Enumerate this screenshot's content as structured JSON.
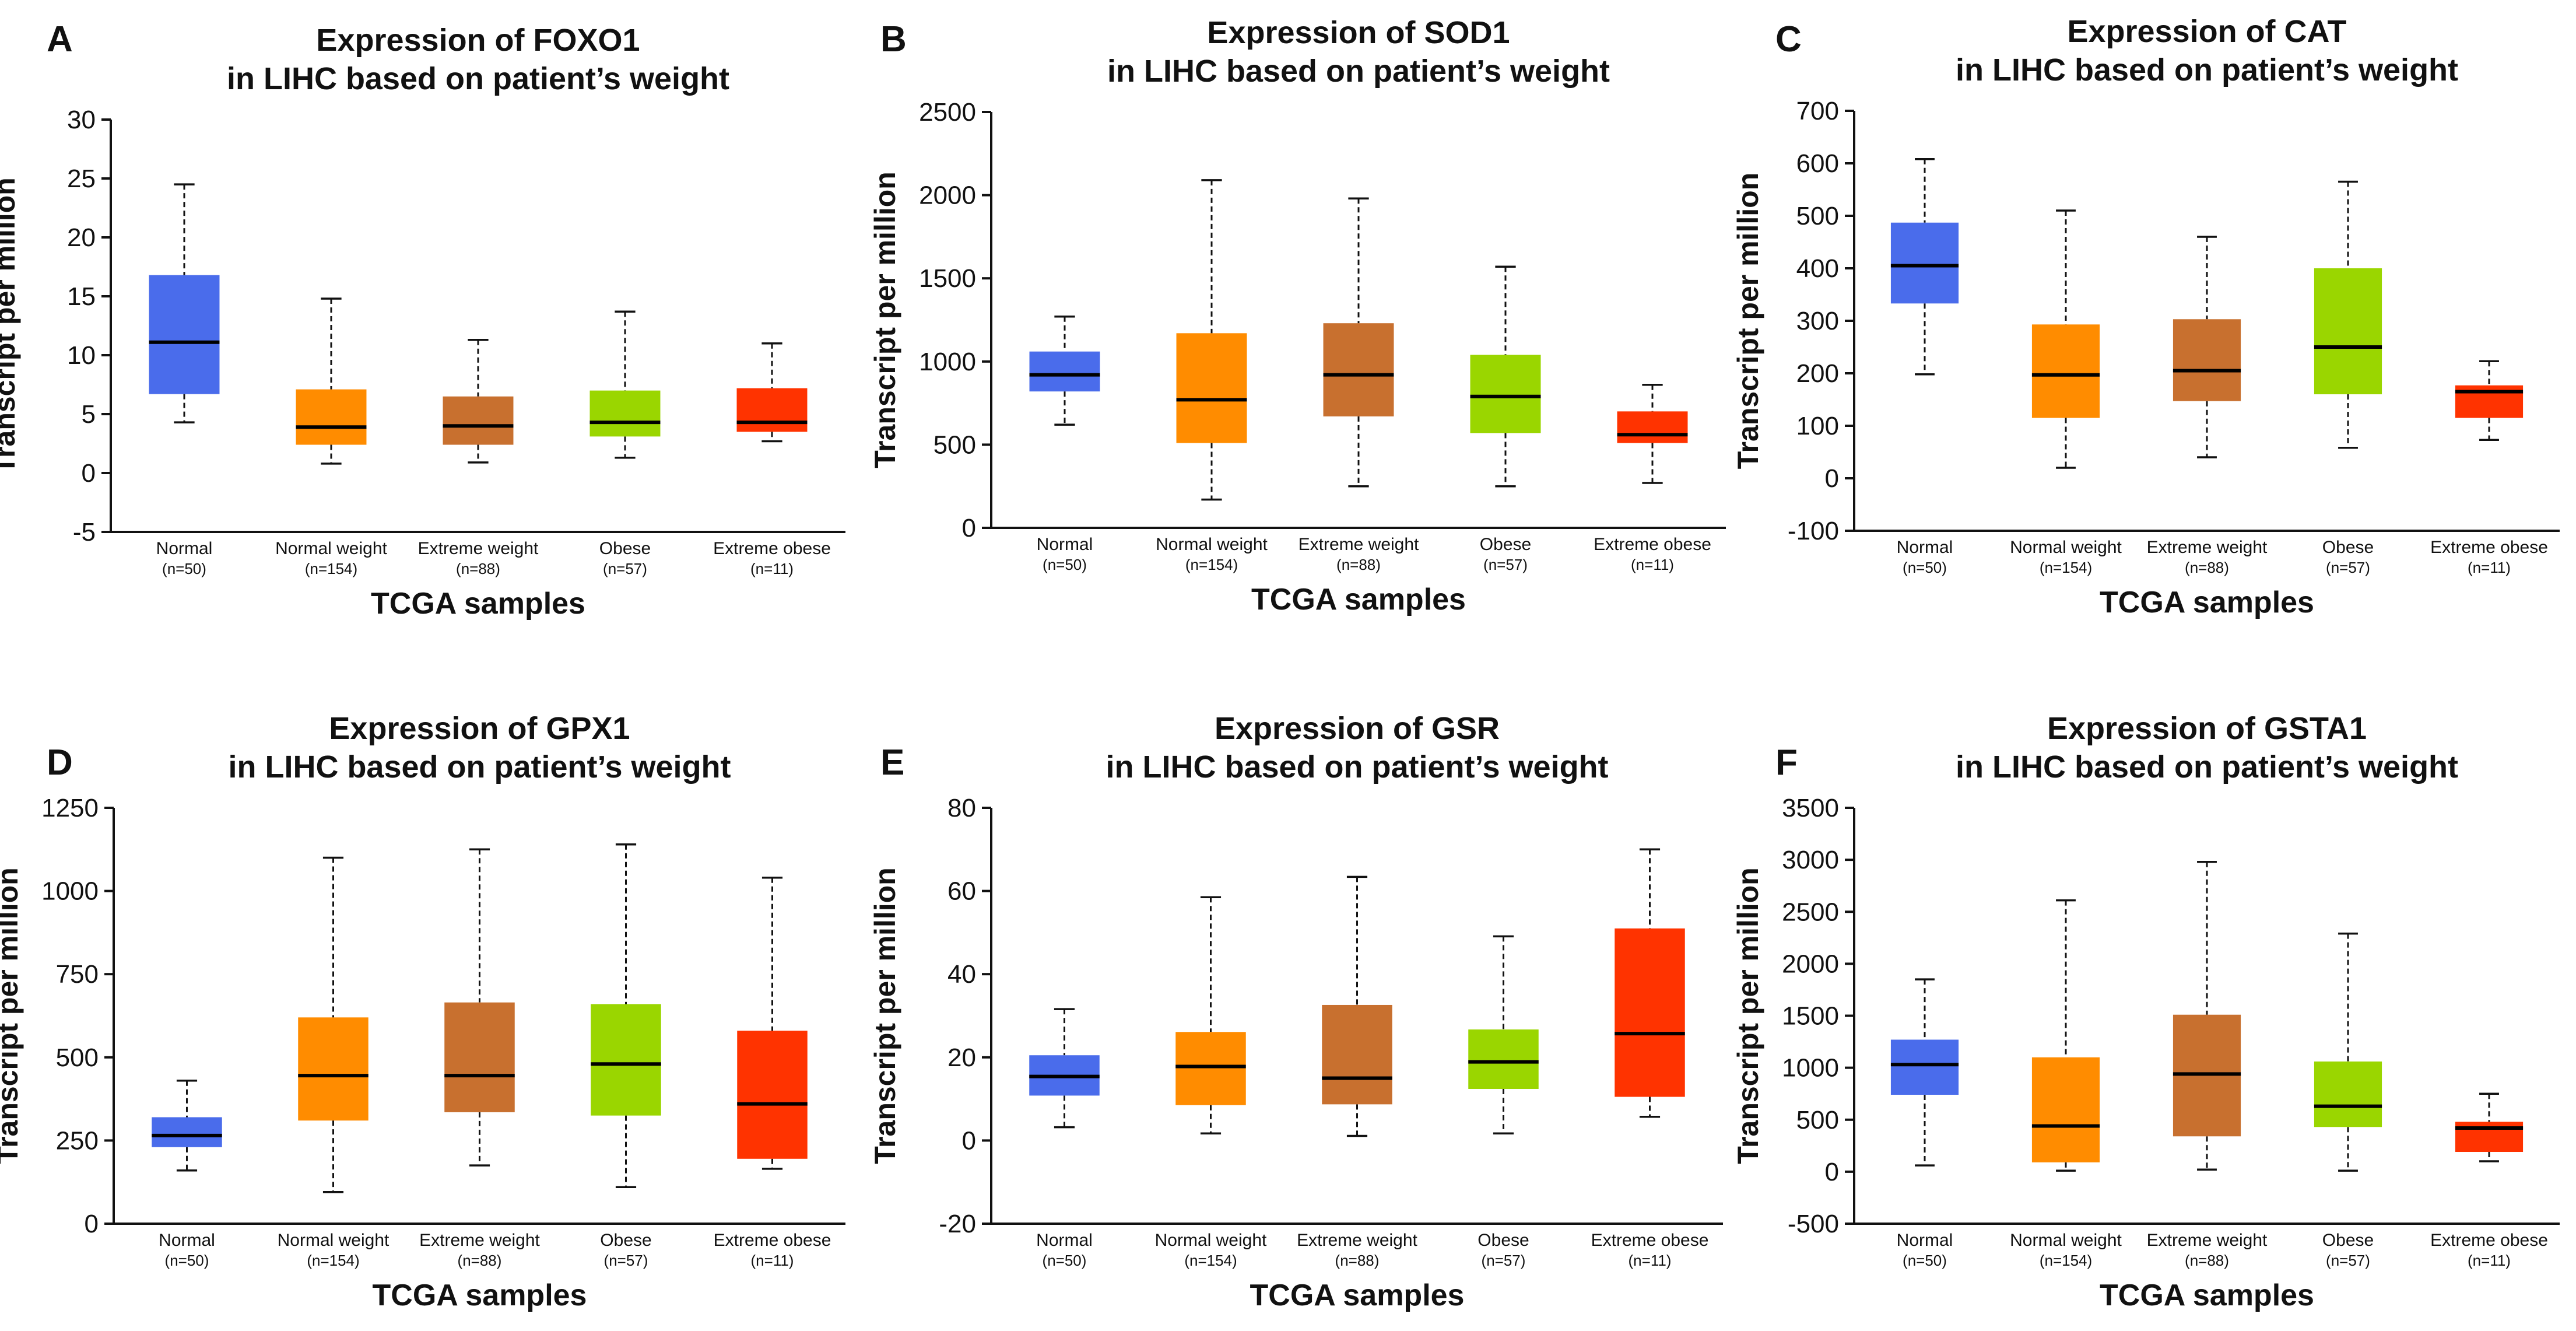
{
  "figure": {
    "x_axis_label": "TCGA samples",
    "y_axis_label": "Transcript per million"
  },
  "colors": {
    "Normal": "#4A6CEB",
    "Normal weight": "#FF8C00",
    "Extreme weight": "#C8702F",
    "Obese": "#9AD600",
    "Extreme obese": "#FF3300"
  },
  "chart_data": [
    {
      "panel": "A",
      "type": "box",
      "title": [
        "Expression of FOXO1",
        "in LIHC based on patient’s weight"
      ],
      "xlabel": "TCGA samples",
      "ylabel": "Transcript per million",
      "ylim": [
        -5,
        30
      ],
      "yticks": [
        -5,
        0,
        5,
        10,
        15,
        20,
        25,
        30
      ],
      "categories": [
        "Normal",
        "Normal weight",
        "Extreme weight",
        "Obese",
        "Extreme obese"
      ],
      "n_labels": [
        "(n=50)",
        "(n=154)",
        "(n=88)",
        "(n=57)",
        "(n=11)"
      ],
      "boxes": [
        {
          "min": 4.3,
          "q1": 6.7,
          "median": 11.1,
          "q3": 16.8,
          "max": 24.5
        },
        {
          "min": 0.8,
          "q1": 2.4,
          "median": 3.9,
          "q3": 7.1,
          "max": 14.8
        },
        {
          "min": 0.9,
          "q1": 2.4,
          "median": 4.0,
          "q3": 6.5,
          "max": 11.3
        },
        {
          "min": 1.3,
          "q1": 3.1,
          "median": 4.3,
          "q3": 7.0,
          "max": 13.7
        },
        {
          "min": 2.7,
          "q1": 3.5,
          "median": 4.3,
          "q3": 7.2,
          "max": 11.0
        }
      ]
    },
    {
      "panel": "B",
      "type": "box",
      "title": [
        "Expression of SOD1",
        "in LIHC based on patient’s weight"
      ],
      "xlabel": "TCGA samples",
      "ylabel": "Transcript per million",
      "ylim": [
        0,
        2500
      ],
      "yticks": [
        0,
        500,
        1000,
        1500,
        2000,
        2500
      ],
      "categories": [
        "Normal",
        "Normal weight",
        "Extreme weight",
        "Obese",
        "Extreme obese"
      ],
      "n_labels": [
        "(n=50)",
        "(n=154)",
        "(n=88)",
        "(n=57)",
        "(n=11)"
      ],
      "boxes": [
        {
          "min": 620,
          "q1": 820,
          "median": 920,
          "q3": 1060,
          "max": 1270
        },
        {
          "min": 170,
          "q1": 510,
          "median": 770,
          "q3": 1170,
          "max": 2090
        },
        {
          "min": 250,
          "q1": 670,
          "median": 920,
          "q3": 1230,
          "max": 1980
        },
        {
          "min": 250,
          "q1": 570,
          "median": 790,
          "q3": 1040,
          "max": 1570
        },
        {
          "min": 270,
          "q1": 510,
          "median": 560,
          "q3": 700,
          "max": 860
        }
      ]
    },
    {
      "panel": "C",
      "type": "box",
      "title": [
        "Expression of CAT",
        "in LIHC based on patient’s weight"
      ],
      "xlabel": "TCGA samples",
      "ylabel": "Transcript per million",
      "ylim": [
        -100,
        700
      ],
      "yticks": [
        -100,
        0,
        100,
        200,
        300,
        400,
        500,
        600,
        700
      ],
      "categories": [
        "Normal",
        "Normal weight",
        "Extreme weight",
        "Obese",
        "Extreme obese"
      ],
      "n_labels": [
        "(n=50)",
        "(n=154)",
        "(n=88)",
        "(n=57)",
        "(n=11)"
      ],
      "boxes": [
        {
          "min": 198,
          "q1": 333,
          "median": 405,
          "q3": 487,
          "max": 608
        },
        {
          "min": 20,
          "q1": 115,
          "median": 197,
          "q3": 293,
          "max": 510
        },
        {
          "min": 40,
          "q1": 147,
          "median": 205,
          "q3": 303,
          "max": 460
        },
        {
          "min": 58,
          "q1": 160,
          "median": 250,
          "q3": 400,
          "max": 565
        },
        {
          "min": 73,
          "q1": 115,
          "median": 165,
          "q3": 177,
          "max": 223
        }
      ]
    },
    {
      "panel": "D",
      "type": "box",
      "title": [
        "Expression of GPX1",
        "in LIHC based on patient’s weight"
      ],
      "xlabel": "TCGA samples",
      "ylabel": "Transcript per million",
      "ylim": [
        0,
        1250
      ],
      "yticks": [
        0,
        250,
        500,
        750,
        1000,
        1250
      ],
      "categories": [
        "Normal",
        "Normal weight",
        "Extreme weight",
        "Obese",
        "Extreme obese"
      ],
      "n_labels": [
        "(n=50)",
        "(n=154)",
        "(n=88)",
        "(n=57)",
        "(n=11)"
      ],
      "boxes": [
        {
          "min": 160,
          "q1": 230,
          "median": 265,
          "q3": 320,
          "max": 430
        },
        {
          "min": 95,
          "q1": 310,
          "median": 445,
          "q3": 620,
          "max": 1100
        },
        {
          "min": 175,
          "q1": 335,
          "median": 445,
          "q3": 665,
          "max": 1125
        },
        {
          "min": 110,
          "q1": 325,
          "median": 480,
          "q3": 660,
          "max": 1140
        },
        {
          "min": 165,
          "q1": 195,
          "median": 360,
          "q3": 580,
          "max": 1040
        }
      ]
    },
    {
      "panel": "E",
      "type": "box",
      "title": [
        "Expression of GSR",
        "in LIHC based on patient’s weight"
      ],
      "xlabel": "TCGA samples",
      "ylabel": "Transcript per million",
      "ylim": [
        -20,
        80
      ],
      "yticks": [
        -20,
        0,
        20,
        40,
        60,
        80
      ],
      "categories": [
        "Normal",
        "Normal weight",
        "Extreme weight",
        "Obese",
        "Extreme obese"
      ],
      "n_labels": [
        "(n=50)",
        "(n=154)",
        "(n=88)",
        "(n=57)",
        "(n=11)"
      ],
      "boxes": [
        {
          "min": 3.2,
          "q1": 10.8,
          "median": 15.4,
          "q3": 20.5,
          "max": 31.6
        },
        {
          "min": 1.7,
          "q1": 8.5,
          "median": 17.8,
          "q3": 26.1,
          "max": 58.5
        },
        {
          "min": 1.1,
          "q1": 8.7,
          "median": 15.0,
          "q3": 32.6,
          "max": 63.4
        },
        {
          "min": 1.7,
          "q1": 12.4,
          "median": 18.9,
          "q3": 26.7,
          "max": 49.1
        },
        {
          "min": 5.7,
          "q1": 10.5,
          "median": 25.7,
          "q3": 51.0,
          "max": 70.0
        }
      ]
    },
    {
      "panel": "F",
      "type": "box",
      "title": [
        "Expression of GSTA1",
        "in LIHC based on patient’s weight"
      ],
      "xlabel": "TCGA samples",
      "ylabel": "Transcript per million",
      "ylim": [
        -500,
        3500
      ],
      "yticks": [
        -500,
        0,
        500,
        1000,
        1500,
        2000,
        2500,
        3000,
        3500
      ],
      "categories": [
        "Normal",
        "Normal weight",
        "Extreme weight",
        "Obese",
        "Extreme obese"
      ],
      "n_labels": [
        "(n=50)",
        "(n=154)",
        "(n=88)",
        "(n=57)",
        "(n=11)"
      ],
      "boxes": [
        {
          "min": 60,
          "q1": 740,
          "median": 1030,
          "q3": 1270,
          "max": 1850
        },
        {
          "min": 10,
          "q1": 90,
          "median": 440,
          "q3": 1100,
          "max": 2610
        },
        {
          "min": 20,
          "q1": 340,
          "median": 940,
          "q3": 1510,
          "max": 2980
        },
        {
          "min": 10,
          "q1": 430,
          "median": 630,
          "q3": 1060,
          "max": 2290
        },
        {
          "min": 100,
          "q1": 190,
          "median": 420,
          "q3": 480,
          "max": 750
        }
      ]
    }
  ]
}
